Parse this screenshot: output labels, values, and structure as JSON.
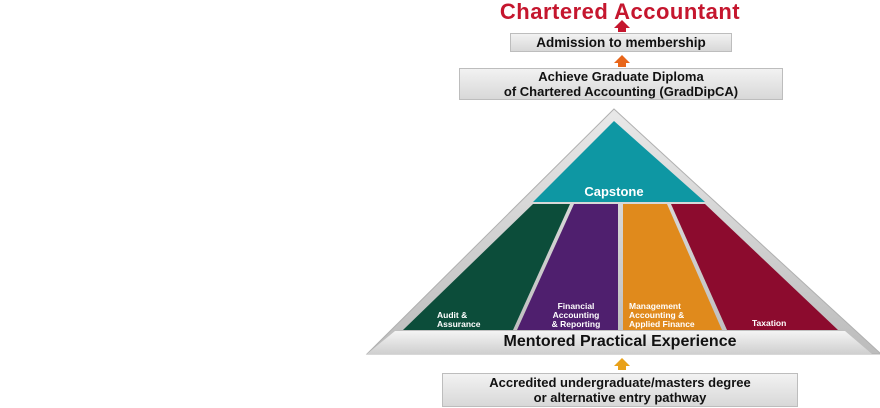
{
  "diagram": {
    "title": "Chartered Accountant",
    "admission": "Admission to membership",
    "graddip_line1": "Achieve Graduate Diploma",
    "graddip_line2": "of Chartered Accounting (GradDipCA)",
    "capstone": "Capstone",
    "pillars": [
      {
        "lines": [
          "Audit &",
          "Assurance"
        ],
        "color": "#0c4d3a"
      },
      {
        "lines": [
          "Financial",
          "Accounting",
          "& Reporting"
        ],
        "color": "#4f1f6e"
      },
      {
        "lines": [
          "Management",
          "Accounting &",
          "Applied Finance"
        ],
        "color": "#e08a1c"
      },
      {
        "lines": [
          "Taxation"
        ],
        "color": "#8c0b2e"
      }
    ],
    "capstone_color": "#0e97a3",
    "base_label": "Mentored Practical Experience",
    "entry_line1": "Accredited undergraduate/masters degree",
    "entry_line2": "or alternative entry pathway",
    "arrow_colors": {
      "top": "#c5162e",
      "mid": "#e8661a",
      "bottom": "#e8a11a"
    }
  }
}
